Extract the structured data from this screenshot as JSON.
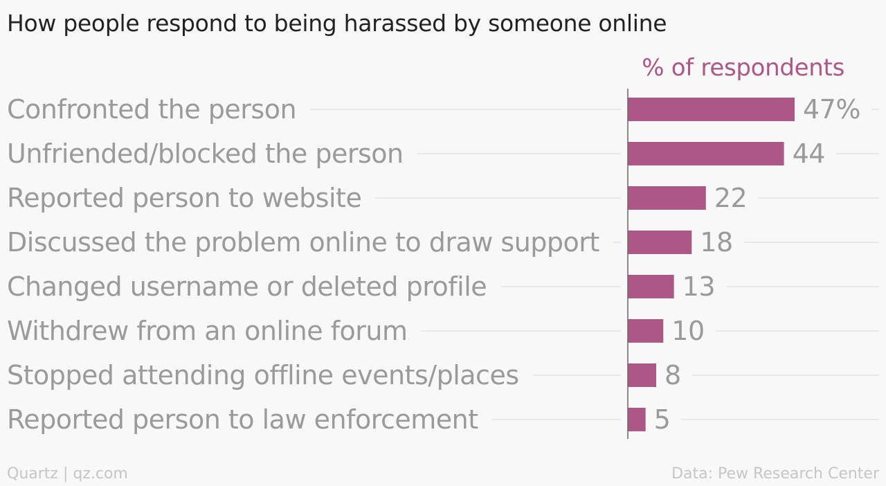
{
  "title": "How people respond to being harassed by someone online",
  "footer": {
    "source_left": "Quartz | qz.com",
    "source_right": "Data: Pew Research Center"
  },
  "colors": {
    "bar": "#ad5787",
    "label": "#9a9a9a",
    "gridline": "#e4e4e4",
    "axis": "#666666"
  },
  "chart_data": {
    "type": "bar",
    "orientation": "horizontal",
    "title": "How people respond to being harassed by someone online",
    "series_label": "% of respondents",
    "categories": [
      "Confronted the person",
      "Unfriended/blocked the person",
      "Reported person to website",
      "Discussed the problem online to draw support",
      "Changed username or deleted profile",
      "Withdrew from an online forum",
      "Stopped attending offline events/places",
      "Reported person to law enforcement"
    ],
    "values": [
      47,
      44,
      22,
      18,
      13,
      10,
      8,
      5
    ],
    "value_labels": [
      "47%",
      "44",
      "22",
      "18",
      "13",
      "10",
      "8",
      "5"
    ],
    "xlim": [
      0,
      47
    ],
    "grid": true
  }
}
